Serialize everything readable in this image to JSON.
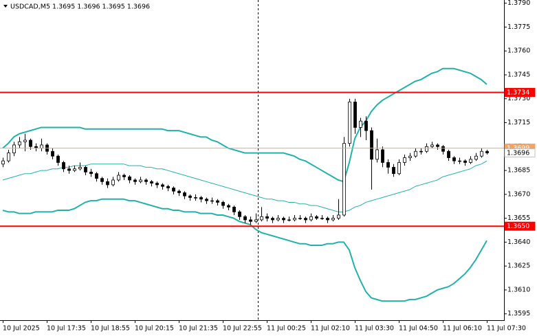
{
  "chart_data": {
    "type": "candlestick",
    "title": "USDCAD,M5  1.3695 1.3696 1.3695 1.3696",
    "categories": [
      "10 Jul 2025",
      null,
      null,
      null,
      null,
      null,
      null,
      null,
      "10 Jul 17:35",
      null,
      null,
      null,
      null,
      null,
      null,
      null,
      "10 Jul 18:55",
      null,
      null,
      null,
      null,
      null,
      null,
      null,
      "10 Jul 20:15",
      null,
      null,
      null,
      null,
      null,
      null,
      null,
      "10 Jul 21:35",
      null,
      null,
      null,
      null,
      null,
      null,
      null,
      "10 Jul 22:55",
      null,
      null,
      null,
      null,
      null,
      null,
      null,
      "11 Jul 00:25",
      null,
      null,
      null,
      null,
      null,
      null,
      null,
      "11 Jul 02:10",
      null,
      null,
      null,
      null,
      null,
      null,
      null,
      "11 Jul 03:30",
      null,
      null,
      null,
      null,
      null,
      null,
      null,
      "11 Jul 04:50",
      null,
      null,
      null,
      null,
      null,
      null,
      null,
      "11 Jul 06:10",
      null,
      null,
      null,
      null,
      null,
      null,
      null,
      "11 Jul 07:30"
    ],
    "candles": [
      [
        1.3689,
        1.3693,
        1.3687,
        1.3691
      ],
      [
        1.3691,
        1.3698,
        1.369,
        1.3696
      ],
      [
        1.3696,
        1.3703,
        1.3694,
        1.3701
      ],
      [
        1.3701,
        1.3706,
        1.3699,
        1.3703
      ],
      [
        1.3703,
        1.3708,
        1.3697,
        1.3704
      ],
      [
        1.3704,
        1.3705,
        1.3698,
        1.37
      ],
      [
        1.37,
        1.3702,
        1.3697,
        1.3699
      ],
      [
        1.3699,
        1.3705,
        1.3697,
        1.3701
      ],
      [
        1.3701,
        1.3702,
        1.3695,
        1.3697
      ],
      [
        1.3697,
        1.3699,
        1.3692,
        1.3694
      ],
      [
        1.3694,
        1.3695,
        1.3688,
        1.369
      ],
      [
        1.369,
        1.3691,
        1.3684,
        1.3686
      ],
      [
        1.3686,
        1.3688,
        1.3683,
        1.3685
      ],
      [
        1.3685,
        1.3688,
        1.3684,
        1.3686
      ],
      [
        1.3686,
        1.369,
        1.3685,
        1.3687
      ],
      [
        1.3687,
        1.3688,
        1.3682,
        1.3684
      ],
      [
        1.3684,
        1.3686,
        1.3681,
        1.3683
      ],
      [
        1.3683,
        1.3684,
        1.3678,
        1.368
      ],
      [
        1.368,
        1.3681,
        1.3676,
        1.3678
      ],
      [
        1.3678,
        1.368,
        1.3674,
        1.3676
      ],
      [
        1.3676,
        1.3681,
        1.3675,
        1.3679
      ],
      [
        1.3679,
        1.3684,
        1.3678,
        1.3682
      ],
      [
        1.3682,
        1.3683,
        1.3679,
        1.3681
      ],
      [
        1.3681,
        1.3682,
        1.3677,
        1.3679
      ],
      [
        1.3679,
        1.368,
        1.3676,
        1.3678
      ],
      [
        1.3678,
        1.3681,
        1.3677,
        1.3679
      ],
      [
        1.3679,
        1.368,
        1.3676,
        1.3678
      ],
      [
        1.3678,
        1.3679,
        1.3675,
        1.3677
      ],
      [
        1.3677,
        1.3678,
        1.3674,
        1.3676
      ],
      [
        1.3676,
        1.3677,
        1.3673,
        1.3675
      ],
      [
        1.3675,
        1.3676,
        1.3672,
        1.3674
      ],
      [
        1.3674,
        1.3675,
        1.367,
        1.3672
      ],
      [
        1.3672,
        1.3673,
        1.3669,
        1.3671
      ],
      [
        1.3671,
        1.3672,
        1.3667,
        1.3669
      ],
      [
        1.3669,
        1.367,
        1.3666,
        1.3668
      ],
      [
        1.3668,
        1.367,
        1.3666,
        1.3668
      ],
      [
        1.3668,
        1.3669,
        1.3665,
        1.3667
      ],
      [
        1.3667,
        1.3668,
        1.3664,
        1.3666
      ],
      [
        1.3666,
        1.3668,
        1.3664,
        1.3666
      ],
      [
        1.3666,
        1.3667,
        1.3663,
        1.3665
      ],
      [
        1.3665,
        1.3666,
        1.3661,
        1.3663
      ],
      [
        1.3663,
        1.3664,
        1.366,
        1.3662
      ],
      [
        1.3662,
        1.3663,
        1.3657,
        1.3659
      ],
      [
        1.3659,
        1.366,
        1.3654,
        1.3656
      ],
      [
        1.3656,
        1.3657,
        1.3652,
        1.3654
      ],
      [
        1.3654,
        1.3656,
        1.3651,
        1.3653
      ],
      [
        1.3653,
        1.3658,
        1.3652,
        1.3654
      ],
      [
        1.3654,
        1.3662,
        1.3653,
        1.3656
      ],
      [
        1.3656,
        1.3658,
        1.3653,
        1.3655
      ],
      [
        1.3655,
        1.3656,
        1.3652,
        1.3654
      ],
      [
        1.3654,
        1.3657,
        1.3653,
        1.3655
      ],
      [
        1.3655,
        1.3656,
        1.3652,
        1.3654
      ],
      [
        1.3654,
        1.3656,
        1.3653,
        1.3654
      ],
      [
        1.3654,
        1.3657,
        1.3653,
        1.3655
      ],
      [
        1.3655,
        1.3657,
        1.3654,
        1.3655
      ],
      [
        1.3655,
        1.3656,
        1.3652,
        1.3654
      ],
      [
        1.3654,
        1.3658,
        1.3653,
        1.3656
      ],
      [
        1.3656,
        1.3657,
        1.3654,
        1.3655
      ],
      [
        1.3655,
        1.3657,
        1.3654,
        1.3655
      ],
      [
        1.3655,
        1.3656,
        1.3652,
        1.3654
      ],
      [
        1.3654,
        1.3657,
        1.3653,
        1.3655
      ],
      [
        1.3655,
        1.3667,
        1.3654,
        1.3657
      ],
      [
        1.3657,
        1.3706,
        1.3656,
        1.3702
      ],
      [
        1.3702,
        1.373,
        1.37,
        1.3728
      ],
      [
        1.3728,
        1.373,
        1.3708,
        1.3712
      ],
      [
        1.3712,
        1.3718,
        1.3706,
        1.3716
      ],
      [
        1.3716,
        1.3719,
        1.3704,
        1.371
      ],
      [
        1.371,
        1.3712,
        1.3673,
        1.3692
      ],
      [
        1.3692,
        1.3705,
        1.369,
        1.3698
      ],
      [
        1.3698,
        1.37,
        1.3687,
        1.369
      ],
      [
        1.369,
        1.3692,
        1.3683,
        1.3687
      ],
      [
        1.3687,
        1.3689,
        1.3681,
        1.3683
      ],
      [
        1.3683,
        1.3692,
        1.3682,
        1.369
      ],
      [
        1.369,
        1.3695,
        1.3688,
        1.3693
      ],
      [
        1.3693,
        1.3696,
        1.3691,
        1.3694
      ],
      [
        1.3694,
        1.3699,
        1.3693,
        1.3697
      ],
      [
        1.3697,
        1.3699,
        1.3695,
        1.3697
      ],
      [
        1.3697,
        1.3702,
        1.3696,
        1.37
      ],
      [
        1.37,
        1.3703,
        1.3699,
        1.3701
      ],
      [
        1.3701,
        1.3702,
        1.3698,
        1.37
      ],
      [
        1.37,
        1.3701,
        1.3695,
        1.3697
      ],
      [
        1.3697,
        1.3698,
        1.3691,
        1.3693
      ],
      [
        1.3693,
        1.3694,
        1.3689,
        1.3691
      ],
      [
        1.3691,
        1.3693,
        1.3689,
        1.3691
      ],
      [
        1.3691,
        1.3692,
        1.3688,
        1.369
      ],
      [
        1.369,
        1.3694,
        1.3689,
        1.3692
      ],
      [
        1.3692,
        1.3696,
        1.3691,
        1.3694
      ],
      [
        1.3694,
        1.3699,
        1.3693,
        1.3697
      ],
      [
        1.3697,
        1.3698,
        1.3695,
        1.3696
      ]
    ],
    "candle_color": "#000000",
    "bands": [
      {
        "color": "#20b2aa",
        "width": 2,
        "values": [
          1.3699,
          1.3702,
          1.3706,
          1.3708,
          1.3709,
          1.371,
          1.3711,
          1.3712,
          1.3712,
          1.3712,
          1.3712,
          1.3712,
          1.3712,
          1.3712,
          1.3712,
          1.3711,
          1.3711,
          1.3711,
          1.3711,
          1.3711,
          1.3711,
          1.3711,
          1.3711,
          1.3711,
          1.3711,
          1.3711,
          1.3711,
          1.3711,
          1.3711,
          1.3711,
          1.371,
          1.371,
          1.371,
          1.3709,
          1.3708,
          1.3707,
          1.3706,
          1.3706,
          1.3704,
          1.3703,
          1.3701,
          1.3699,
          1.3698,
          1.3697,
          1.3696,
          1.3696,
          1.3696,
          1.3696,
          1.3696,
          1.3696,
          1.3696,
          1.3696,
          1.3695,
          1.3694,
          1.3692,
          1.3691,
          1.3689,
          1.3687,
          1.3685,
          1.3683,
          1.3681,
          1.3679,
          1.3678,
          1.369,
          1.3705,
          1.3712,
          1.3716,
          1.3722,
          1.3726,
          1.3729,
          1.3731,
          1.3733,
          1.3735,
          1.3737,
          1.3739,
          1.3741,
          1.3742,
          1.3744,
          1.3746,
          1.3747,
          1.3749,
          1.3749,
          1.3749,
          1.3748,
          1.3747,
          1.3746,
          1.3744,
          1.3742,
          1.3739
        ]
      },
      {
        "color": "#20b2aa",
        "width": 1,
        "values": [
          1.3679,
          1.368,
          1.3681,
          1.3682,
          1.3683,
          1.3683,
          1.3684,
          1.3685,
          1.3685,
          1.3686,
          1.3686,
          1.3687,
          1.3687,
          1.3688,
          1.3688,
          1.3688,
          1.3689,
          1.3689,
          1.3689,
          1.3689,
          1.3689,
          1.3689,
          1.3689,
          1.3688,
          1.3688,
          1.3688,
          1.3687,
          1.3687,
          1.3686,
          1.3686,
          1.3685,
          1.3684,
          1.3683,
          1.3682,
          1.3681,
          1.368,
          1.3679,
          1.3678,
          1.3677,
          1.3676,
          1.3675,
          1.3674,
          1.3673,
          1.3672,
          1.3671,
          1.367,
          1.3669,
          1.3668,
          1.3667,
          1.3667,
          1.3666,
          1.3666,
          1.3665,
          1.3665,
          1.3664,
          1.3664,
          1.3663,
          1.3663,
          1.3662,
          1.3661,
          1.366,
          1.3659,
          1.3659,
          1.366,
          1.3662,
          1.3663,
          1.3665,
          1.3666,
          1.3667,
          1.3668,
          1.3669,
          1.367,
          1.3671,
          1.3672,
          1.3673,
          1.3675,
          1.3676,
          1.3677,
          1.3678,
          1.3679,
          1.3681,
          1.3682,
          1.3683,
          1.3684,
          1.3685,
          1.3686,
          1.3688,
          1.3689,
          1.3691
        ]
      },
      {
        "color": "#20b2aa",
        "width": 2,
        "values": [
          1.366,
          1.3659,
          1.3659,
          1.3658,
          1.3658,
          1.3658,
          1.3659,
          1.3659,
          1.3659,
          1.3659,
          1.366,
          1.366,
          1.366,
          1.3661,
          1.3663,
          1.3665,
          1.3666,
          1.3666,
          1.3667,
          1.3667,
          1.3667,
          1.3667,
          1.3667,
          1.3666,
          1.3666,
          1.3665,
          1.3664,
          1.3663,
          1.3662,
          1.3661,
          1.3661,
          1.366,
          1.366,
          1.3659,
          1.3659,
          1.3659,
          1.3658,
          1.3658,
          1.3658,
          1.3657,
          1.3657,
          1.3656,
          1.3655,
          1.3653,
          1.3652,
          1.3651,
          1.3648,
          1.3646,
          1.3645,
          1.3644,
          1.3643,
          1.3642,
          1.3641,
          1.364,
          1.3639,
          1.3639,
          1.3638,
          1.3638,
          1.3638,
          1.3639,
          1.3639,
          1.364,
          1.364,
          1.3635,
          1.3624,
          1.3616,
          1.3609,
          1.3605,
          1.3604,
          1.3603,
          1.3603,
          1.3603,
          1.3603,
          1.3603,
          1.3604,
          1.3604,
          1.3605,
          1.3606,
          1.3608,
          1.361,
          1.3611,
          1.3612,
          1.3614,
          1.3617,
          1.362,
          1.3624,
          1.3629,
          1.3635,
          1.3641
        ]
      }
    ],
    "levels": [
      {
        "value": 1.3734,
        "label": "1.3734",
        "color": "#ff0000"
      },
      {
        "value": 1.365,
        "label": "1.3650",
        "color": "#ff0000"
      },
      {
        "value": 1.3699,
        "label": "1.3699",
        "color": "#f4a460"
      }
    ],
    "bid": {
      "value": 1.3696,
      "label": "1.3696",
      "color": "#c0c0c0"
    },
    "ylim": [
      1.3591,
      1.3792
    ],
    "yticks": [
      {
        "value": 1.379,
        "label": "1.3790"
      },
      1.3775,
      {
        "value": 1.376,
        "label": "1.3760"
      },
      1.3745,
      {
        "value": 1.373,
        "label": "1.3730"
      },
      1.3715,
      {
        "value": 1.37,
        "label": "1.3700"
      },
      1.3685,
      {
        "value": 1.367,
        "label": "1.3670"
      },
      1.3655,
      {
        "value": 1.364,
        "label": "1.3640"
      },
      1.3625,
      {
        "value": 1.361,
        "label": "1.3610"
      },
      1.3595
    ]
  }
}
